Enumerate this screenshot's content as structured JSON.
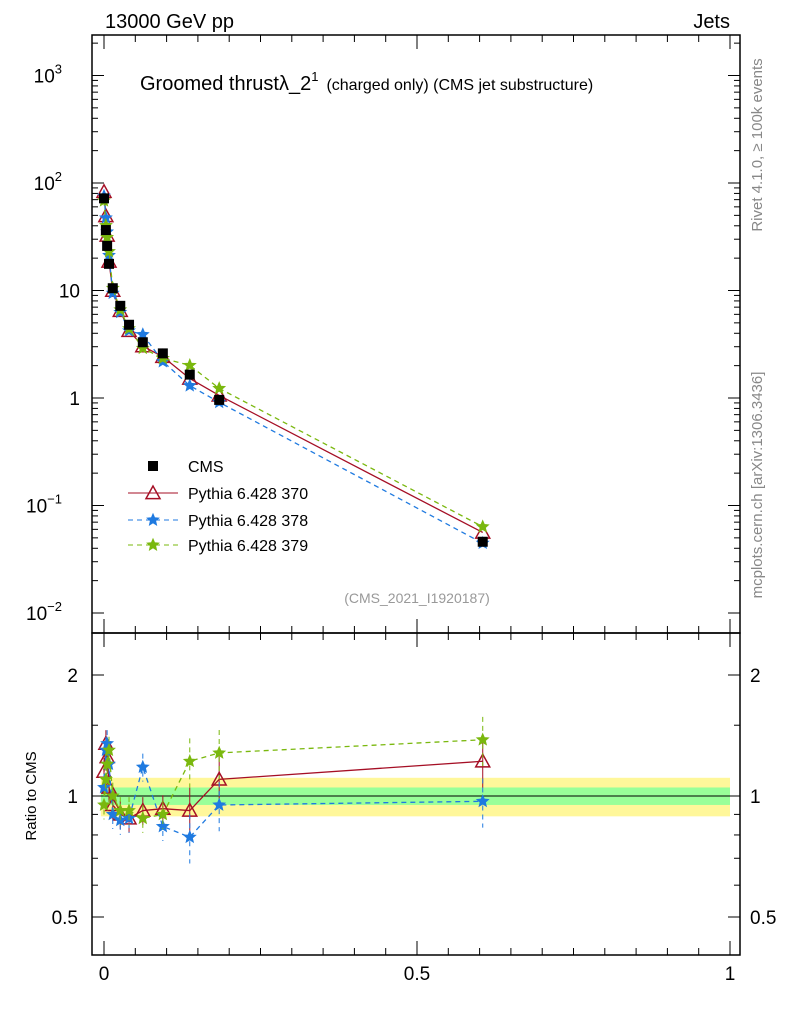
{
  "header": {
    "left": "13000 GeV pp",
    "right": "Jets"
  },
  "side": {
    "rivet": "Rivet 4.1.0, ≥ 100k events",
    "mcplots": "mcplots.cern.ch [arXiv:1306.3436]"
  },
  "chart_data": [
    {
      "type": "line",
      "title": "Groomed thrustλ_2",
      "title_sup": "1",
      "subtitle": "(charged only) (CMS jet substructure)",
      "analysis": "(CMS_2021_I1920187)",
      "yscale": "log",
      "ylim": [
        0.008,
        2000
      ],
      "xlim": [
        -0.02,
        1.0
      ],
      "yticks": [
        {
          "v": 1000,
          "b": "10",
          "e": "3"
        },
        {
          "v": 100,
          "b": "10",
          "e": "2"
        },
        {
          "v": 10,
          "b": "10",
          "e": ""
        },
        {
          "v": 1,
          "b": "1",
          "e": ""
        },
        {
          "v": 0.1,
          "b": "10",
          "e": "−1"
        },
        {
          "v": 0.01,
          "b": "10",
          "e": "−2"
        }
      ],
      "x": [
        0.0,
        0.003,
        0.005,
        0.008,
        0.014,
        0.026,
        0.04,
        0.062,
        0.094,
        0.137,
        0.184,
        0.605
      ],
      "cms": [
        72,
        36.5,
        26,
        17.7,
        10.5,
        7.2,
        4.8,
        3.3,
        2.6,
        1.65,
        0.96,
        0.046
      ],
      "legend": [
        "CMS",
        "Pythia 6.428 370",
        "Pythia 6.428 378",
        "Pythia 6.428 379"
      ],
      "legend_position": "bottom-left"
    },
    {
      "type": "line",
      "ylabel": "Ratio to CMS",
      "yscale": "log",
      "ylim": [
        0.4,
        2.5
      ],
      "yticks": [
        "2",
        "1",
        "0.5"
      ],
      "xticks": [
        "0",
        "0.5",
        "1"
      ],
      "series": [
        {
          "name": "Pythia 6.428 370",
          "color": "#a50f25",
          "style": "solid",
          "marker": "triangle",
          "ratio": [
            1.15,
            1.35,
            1.25,
            1.05,
            0.95,
            0.9,
            0.88,
            0.92,
            0.93,
            0.92,
            1.1,
            1.22
          ]
        },
        {
          "name": "Pythia 6.428 378",
          "color": "#1f7ae0",
          "style": "dashed",
          "marker": "star",
          "ratio": [
            1.05,
            1.3,
            1.35,
            1.2,
            0.9,
            0.87,
            0.88,
            1.18,
            0.84,
            0.79,
            0.95,
            0.97
          ]
        },
        {
          "name": "Pythia 6.428 379",
          "color": "#7ab80e",
          "style": "dashed",
          "marker": "star",
          "ratio": [
            0.95,
            1.1,
            1.2,
            1.3,
            1.0,
            0.92,
            0.92,
            0.88,
            0.9,
            1.22,
            1.28,
            1.38
          ]
        }
      ],
      "band_yellow": 0.11,
      "band_green": 0.05
    }
  ]
}
